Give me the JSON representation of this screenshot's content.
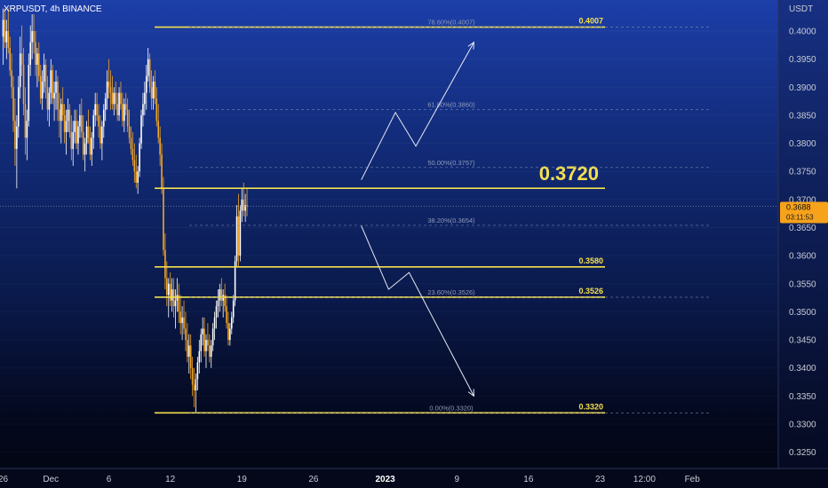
{
  "chart_data": {
    "type": "candlestick",
    "symbol": "XRPUSDT, 4h BINANCE",
    "currency": "USDT",
    "ylim": [
      0.3225,
      0.4025
    ],
    "y_ticks": [
      "0.4000",
      "0.3950",
      "0.3900",
      "0.3850",
      "0.3800",
      "0.3750",
      "0.3700",
      "0.3650",
      "0.3600",
      "0.3550",
      "0.3500",
      "0.3450",
      "0.3400",
      "0.3350",
      "0.3300",
      "0.3250"
    ],
    "x_ticks": [
      {
        "label": "26",
        "bar": 0
      },
      {
        "label": "Dec",
        "bar": 28
      },
      {
        "label": "6",
        "bar": 62
      },
      {
        "label": "12",
        "bar": 98
      },
      {
        "label": "19",
        "bar": 140
      },
      {
        "label": "26",
        "bar": 182
      },
      {
        "label": "2023",
        "bar": 224,
        "bold": true
      },
      {
        "label": "9",
        "bar": 266
      },
      {
        "label": "16",
        "bar": 308
      },
      {
        "label": "23",
        "bar": 350
      },
      {
        "label": "12:00",
        "bar": 376
      },
      {
        "label": "Feb",
        "bar": 404
      }
    ],
    "current_price": {
      "value": 0.3688,
      "label": "0.3688",
      "countdown": "03:11:53"
    },
    "key_levels": [
      {
        "price": 0.4007,
        "label": "0.4007"
      },
      {
        "price": 0.372,
        "label": "0.3720",
        "big": true
      },
      {
        "price": 0.358,
        "label": "0.3580"
      },
      {
        "price": 0.3526,
        "label": "0.3526"
      },
      {
        "price": 0.332,
        "label": "0.3320"
      }
    ],
    "fib_levels": [
      {
        "price": 0.4007,
        "label": "78.60%(0.4007)"
      },
      {
        "price": 0.386,
        "label": "61.80%(0.3860)"
      },
      {
        "price": 0.3757,
        "label": "50.00%(0.3757)"
      },
      {
        "price": 0.3654,
        "label": "38.20%(0.3654)"
      },
      {
        "price": 0.3526,
        "label": "23.60%(0.3526)"
      },
      {
        "price": 0.332,
        "label": "0.00%(0.3320)"
      }
    ],
    "projection_up": [
      {
        "bar": 210,
        "price": 0.3735
      },
      {
        "bar": 230,
        "price": 0.3855
      },
      {
        "bar": 242,
        "price": 0.3795
      },
      {
        "bar": 276,
        "price": 0.398
      }
    ],
    "projection_down": [
      {
        "bar": 210,
        "price": 0.3653
      },
      {
        "bar": 226,
        "price": 0.354
      },
      {
        "bar": 238,
        "price": 0.357
      },
      {
        "bar": 276,
        "price": 0.335
      }
    ],
    "candles": [
      [
        0.399,
        0.404,
        0.394,
        0.402
      ],
      [
        0.402,
        0.404,
        0.397,
        0.398
      ],
      [
        0.398,
        0.402,
        0.395,
        0.4
      ],
      [
        0.4,
        0.404,
        0.396,
        0.397
      ],
      [
        0.397,
        0.399,
        0.392,
        0.393
      ],
      [
        0.393,
        0.396,
        0.388,
        0.39
      ],
      [
        0.39,
        0.392,
        0.382,
        0.384
      ],
      [
        0.384,
        0.388,
        0.376,
        0.379
      ],
      [
        0.379,
        0.385,
        0.372,
        0.383
      ],
      [
        0.383,
        0.392,
        0.381,
        0.39
      ],
      [
        0.39,
        0.399,
        0.388,
        0.396
      ],
      [
        0.396,
        0.401,
        0.392,
        0.394
      ],
      [
        0.394,
        0.397,
        0.385,
        0.387
      ],
      [
        0.387,
        0.39,
        0.378,
        0.381
      ],
      [
        0.381,
        0.386,
        0.377,
        0.384
      ],
      [
        0.384,
        0.396,
        0.383,
        0.394
      ],
      [
        0.394,
        0.401,
        0.392,
        0.398
      ],
      [
        0.398,
        0.403,
        0.395,
        0.4
      ],
      [
        0.4,
        0.403,
        0.396,
        0.398
      ],
      [
        0.398,
        0.4,
        0.392,
        0.394
      ],
      [
        0.394,
        0.397,
        0.39,
        0.396
      ],
      [
        0.396,
        0.398,
        0.391,
        0.392
      ],
      [
        0.392,
        0.394,
        0.387,
        0.388
      ],
      [
        0.388,
        0.393,
        0.386,
        0.391
      ],
      [
        0.391,
        0.396,
        0.389,
        0.394
      ],
      [
        0.394,
        0.395,
        0.388,
        0.39
      ],
      [
        0.39,
        0.392,
        0.384,
        0.386
      ],
      [
        0.386,
        0.39,
        0.383,
        0.389
      ],
      [
        0.389,
        0.395,
        0.387,
        0.393
      ],
      [
        0.393,
        0.394,
        0.387,
        0.388
      ],
      [
        0.388,
        0.391,
        0.384,
        0.389
      ],
      [
        0.389,
        0.393,
        0.386,
        0.391
      ],
      [
        0.391,
        0.392,
        0.384,
        0.386
      ],
      [
        0.386,
        0.389,
        0.381,
        0.384
      ],
      [
        0.384,
        0.388,
        0.38,
        0.387
      ],
      [
        0.387,
        0.39,
        0.384,
        0.385
      ],
      [
        0.385,
        0.387,
        0.38,
        0.382
      ],
      [
        0.382,
        0.386,
        0.378,
        0.384
      ],
      [
        0.384,
        0.388,
        0.382,
        0.386
      ],
      [
        0.386,
        0.387,
        0.381,
        0.382
      ],
      [
        0.382,
        0.385,
        0.377,
        0.379
      ],
      [
        0.379,
        0.384,
        0.376,
        0.382
      ],
      [
        0.382,
        0.386,
        0.38,
        0.384
      ],
      [
        0.384,
        0.386,
        0.379,
        0.38
      ],
      [
        0.38,
        0.384,
        0.378,
        0.383
      ],
      [
        0.383,
        0.387,
        0.381,
        0.385
      ],
      [
        0.385,
        0.388,
        0.381,
        0.382
      ],
      [
        0.382,
        0.385,
        0.377,
        0.378
      ],
      [
        0.378,
        0.381,
        0.375,
        0.38
      ],
      [
        0.38,
        0.384,
        0.378,
        0.383
      ],
      [
        0.383,
        0.386,
        0.38,
        0.381
      ],
      [
        0.381,
        0.383,
        0.377,
        0.378
      ],
      [
        0.378,
        0.382,
        0.376,
        0.381
      ],
      [
        0.381,
        0.386,
        0.379,
        0.385
      ],
      [
        0.385,
        0.389,
        0.383,
        0.387
      ],
      [
        0.387,
        0.389,
        0.384,
        0.385
      ],
      [
        0.385,
        0.387,
        0.381,
        0.383
      ],
      [
        0.383,
        0.385,
        0.379,
        0.38
      ],
      [
        0.38,
        0.384,
        0.377,
        0.383
      ],
      [
        0.383,
        0.387,
        0.381,
        0.386
      ],
      [
        0.386,
        0.389,
        0.384,
        0.388
      ],
      [
        0.388,
        0.393,
        0.386,
        0.391
      ],
      [
        0.391,
        0.395,
        0.388,
        0.39
      ],
      [
        0.39,
        0.393,
        0.386,
        0.389
      ],
      [
        0.389,
        0.392,
        0.386,
        0.387
      ],
      [
        0.387,
        0.39,
        0.385,
        0.389
      ],
      [
        0.389,
        0.391,
        0.386,
        0.387
      ],
      [
        0.387,
        0.389,
        0.384,
        0.385
      ],
      [
        0.385,
        0.39,
        0.384,
        0.389
      ],
      [
        0.389,
        0.391,
        0.386,
        0.387
      ],
      [
        0.387,
        0.389,
        0.383,
        0.384
      ],
      [
        0.384,
        0.388,
        0.382,
        0.387
      ],
      [
        0.387,
        0.389,
        0.385,
        0.386
      ],
      [
        0.386,
        0.388,
        0.382,
        0.383
      ],
      [
        0.383,
        0.386,
        0.38,
        0.381
      ],
      [
        0.381,
        0.383,
        0.378,
        0.379
      ],
      [
        0.379,
        0.382,
        0.376,
        0.377
      ],
      [
        0.377,
        0.38,
        0.373,
        0.375
      ],
      [
        0.375,
        0.378,
        0.372,
        0.373
      ],
      [
        0.373,
        0.376,
        0.371,
        0.375
      ],
      [
        0.375,
        0.381,
        0.374,
        0.38
      ],
      [
        0.38,
        0.386,
        0.379,
        0.385
      ],
      [
        0.385,
        0.389,
        0.383,
        0.387
      ],
      [
        0.387,
        0.391,
        0.385,
        0.389
      ],
      [
        0.389,
        0.394,
        0.386,
        0.392
      ],
      [
        0.392,
        0.397,
        0.391,
        0.395
      ],
      [
        0.395,
        0.396,
        0.389,
        0.39
      ],
      [
        0.39,
        0.393,
        0.386,
        0.388
      ],
      [
        0.388,
        0.392,
        0.386,
        0.391
      ],
      [
        0.391,
        0.393,
        0.387,
        0.388
      ],
      [
        0.388,
        0.39,
        0.383,
        0.384
      ],
      [
        0.384,
        0.387,
        0.38,
        0.381
      ],
      [
        0.381,
        0.383,
        0.376,
        0.378
      ],
      [
        0.378,
        0.38,
        0.371,
        0.372
      ],
      [
        0.372,
        0.374,
        0.36,
        0.361
      ],
      [
        0.361,
        0.364,
        0.354,
        0.356
      ],
      [
        0.356,
        0.359,
        0.351,
        0.353
      ],
      [
        0.353,
        0.356,
        0.349,
        0.355
      ],
      [
        0.355,
        0.357,
        0.351,
        0.352
      ],
      [
        0.352,
        0.356,
        0.35,
        0.354
      ],
      [
        0.354,
        0.356,
        0.349,
        0.351
      ],
      [
        0.351,
        0.354,
        0.347,
        0.352
      ],
      [
        0.352,
        0.356,
        0.35,
        0.353
      ],
      [
        0.353,
        0.355,
        0.348,
        0.35
      ],
      [
        0.35,
        0.353,
        0.346,
        0.348
      ],
      [
        0.348,
        0.351,
        0.345,
        0.349
      ],
      [
        0.349,
        0.352,
        0.346,
        0.347
      ],
      [
        0.347,
        0.35,
        0.343,
        0.345
      ],
      [
        0.345,
        0.348,
        0.341,
        0.342
      ],
      [
        0.342,
        0.346,
        0.339,
        0.344
      ],
      [
        0.344,
        0.346,
        0.338,
        0.34
      ],
      [
        0.34,
        0.342,
        0.335,
        0.337
      ],
      [
        0.337,
        0.34,
        0.333,
        0.336
      ],
      [
        0.336,
        0.339,
        0.332,
        0.338
      ],
      [
        0.338,
        0.342,
        0.336,
        0.341
      ],
      [
        0.341,
        0.345,
        0.339,
        0.343
      ],
      [
        0.343,
        0.347,
        0.341,
        0.346
      ],
      [
        0.346,
        0.349,
        0.344,
        0.347
      ],
      [
        0.347,
        0.349,
        0.342,
        0.343
      ],
      [
        0.343,
        0.346,
        0.34,
        0.345
      ],
      [
        0.345,
        0.348,
        0.343,
        0.344
      ],
      [
        0.344,
        0.346,
        0.341,
        0.342
      ],
      [
        0.342,
        0.345,
        0.34,
        0.344
      ],
      [
        0.344,
        0.348,
        0.343,
        0.347
      ],
      [
        0.347,
        0.35,
        0.345,
        0.349
      ],
      [
        0.349,
        0.352,
        0.347,
        0.351
      ],
      [
        0.351,
        0.354,
        0.349,
        0.352
      ],
      [
        0.352,
        0.355,
        0.35,
        0.354
      ],
      [
        0.354,
        0.356,
        0.351,
        0.352
      ],
      [
        0.352,
        0.354,
        0.349,
        0.353
      ],
      [
        0.353,
        0.355,
        0.35,
        0.351
      ],
      [
        0.351,
        0.353,
        0.347,
        0.348
      ],
      [
        0.348,
        0.35,
        0.344,
        0.345
      ],
      [
        0.345,
        0.348,
        0.344,
        0.347
      ],
      [
        0.347,
        0.35,
        0.346,
        0.349
      ],
      [
        0.349,
        0.353,
        0.348,
        0.352
      ],
      [
        0.352,
        0.36,
        0.351,
        0.359
      ],
      [
        0.359,
        0.369,
        0.358,
        0.367
      ],
      [
        0.367,
        0.371,
        0.358,
        0.36
      ],
      [
        0.36,
        0.369,
        0.359,
        0.368
      ],
      [
        0.368,
        0.372,
        0.366,
        0.37
      ],
      [
        0.37,
        0.373,
        0.367,
        0.368
      ],
      [
        0.368,
        0.371,
        0.366,
        0.369
      ],
      [
        0.369,
        0.372,
        0.367,
        0.3688
      ]
    ]
  }
}
